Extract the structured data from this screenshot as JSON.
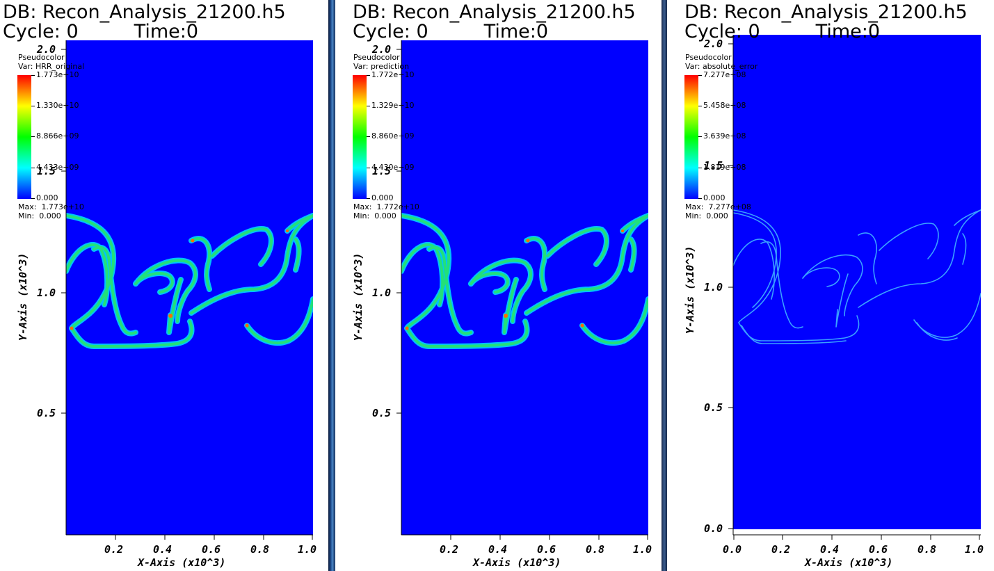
{
  "windows": [
    {
      "db_title": "DB: Recon_Analysis_21200.h5",
      "cycle_label": "Cycle: 0",
      "time_label": "Time:0",
      "legend": {
        "plot_type": "Pseudocolor",
        "var_label": "Var: HRR_original",
        "ticks": [
          "1.773e+10",
          "1.330e+10",
          "8.866e+09",
          "4.433e+09",
          "0.000"
        ],
        "max_label": "Max:  1.773e+10",
        "min_label": "Min:  0.000"
      },
      "y_ticks": [
        "2.0",
        "1.5",
        "1.0",
        "0.5"
      ],
      "x_ticks": [
        "0.2",
        "0.4",
        "0.6",
        "0.8",
        "1.0"
      ],
      "x_title": "X-Axis (x10^3)",
      "y_title": "Y-Axis (x10^3)"
    },
    {
      "db_title": "DB: Recon_Analysis_21200.h5",
      "cycle_label": "Cycle: 0",
      "time_label": "Time:0",
      "legend": {
        "plot_type": "Pseudocolor",
        "var_label": "Var: prediction",
        "ticks": [
          "1.772e+10",
          "1.329e+10",
          "8.860e+09",
          "4.430e+09",
          "0.000"
        ],
        "max_label": "Max:  1.772e+10",
        "min_label": "Min:  0.000"
      },
      "y_ticks": [
        "2.0",
        "1.5",
        "1.0",
        "0.5"
      ],
      "x_ticks": [
        "0.2",
        "0.4",
        "0.6",
        "0.8",
        "1.0"
      ],
      "x_title": "X-Axis (x10^3)",
      "y_title": "Y-Axis (x10^3)"
    },
    {
      "db_title": "DB: Recon_Analysis_21200.h5",
      "cycle_label": "Cycle: 0",
      "time_label": "Time:0",
      "legend": {
        "plot_type": "Pseudocolor",
        "var_label": "Var: absolute_error",
        "ticks": [
          "7.277e+08",
          "5.458e+08",
          "3.639e+08",
          "1.819e+08",
          "0.000"
        ],
        "max_label": "Max:  7.277e+08",
        "min_label": "Min:  0.000"
      },
      "y_ticks": [
        "2.0",
        "1.5",
        "1.0",
        "0.5",
        "0.0"
      ],
      "x_ticks": [
        "0.0",
        "0.2",
        "0.4",
        "0.6",
        "0.8",
        "1.0"
      ],
      "x_title": "X-Axis (x10^3)",
      "y_title": "Y-Axis (x10^3)"
    }
  ],
  "colors": {
    "field_background": "#0000ff",
    "front_line": "#22e07a",
    "front_outline": "#00d8ff",
    "error_line": "#3aa0ff",
    "hot_spot": "#ff6a00"
  },
  "icons": [
    "colorbar-legend-icon"
  ]
}
